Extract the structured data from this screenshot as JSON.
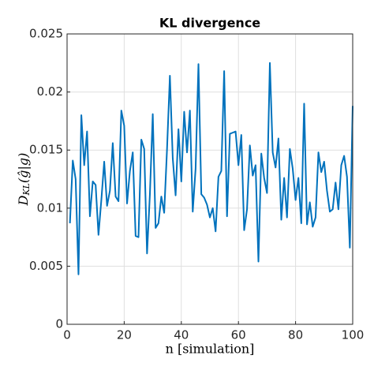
{
  "chart_data": {
    "type": "line",
    "title": "KL divergence",
    "xlabel": "n [simulation]",
    "ylabel": {
      "main": "D",
      "sub": "KL",
      "rest": "(ĝ|g)"
    },
    "x": [
      1,
      2,
      3,
      4,
      5,
      6,
      7,
      8,
      9,
      10,
      11,
      12,
      13,
      14,
      15,
      16,
      17,
      18,
      19,
      20,
      21,
      22,
      23,
      24,
      25,
      26,
      27,
      28,
      29,
      30,
      31,
      32,
      33,
      34,
      35,
      36,
      37,
      38,
      39,
      40,
      41,
      42,
      43,
      44,
      45,
      46,
      47,
      48,
      49,
      50,
      51,
      52,
      53,
      54,
      55,
      56,
      57,
      58,
      59,
      60,
      61,
      62,
      63,
      64,
      65,
      66,
      67,
      68,
      69,
      70,
      71,
      72,
      73,
      74,
      75,
      76,
      77,
      78,
      79,
      80,
      81,
      82,
      83,
      84,
      85,
      86,
      87,
      88,
      89,
      90,
      91,
      92,
      93,
      94,
      95,
      96,
      97,
      98,
      99,
      100
    ],
    "series": [
      {
        "name": "KL",
        "color": "#0072bd",
        "values": [
          0.0087,
          0.0141,
          0.0125,
          0.0043,
          0.018,
          0.0137,
          0.0166,
          0.0093,
          0.0123,
          0.012,
          0.0077,
          0.0107,
          0.014,
          0.0102,
          0.0115,
          0.0156,
          0.011,
          0.0106,
          0.0184,
          0.0171,
          0.0104,
          0.0132,
          0.0148,
          0.0076,
          0.0075,
          0.0159,
          0.0151,
          0.0061,
          0.0112,
          0.0181,
          0.0083,
          0.0087,
          0.011,
          0.0096,
          0.0151,
          0.0214,
          0.0143,
          0.0111,
          0.0168,
          0.0123,
          0.0183,
          0.0148,
          0.0184,
          0.0097,
          0.0134,
          0.0224,
          0.0112,
          0.0109,
          0.0103,
          0.0092,
          0.01,
          0.008,
          0.0127,
          0.0132,
          0.0218,
          0.0093,
          0.0164,
          0.0165,
          0.0166,
          0.0137,
          0.0163,
          0.0081,
          0.0099,
          0.0154,
          0.0128,
          0.0137,
          0.0054,
          0.0147,
          0.0126,
          0.0113,
          0.0225,
          0.0148,
          0.0135,
          0.016,
          0.009,
          0.0126,
          0.0092,
          0.0151,
          0.0134,
          0.0107,
          0.0126,
          0.0087,
          0.019,
          0.0086,
          0.0105,
          0.0084,
          0.0092,
          0.0148,
          0.0131,
          0.014,
          0.0115,
          0.0097,
          0.0099,
          0.0122,
          0.0099,
          0.0137,
          0.0145,
          0.0127,
          0.0066,
          0.0188
        ]
      }
    ],
    "xlim": [
      0,
      100
    ],
    "xticks": [
      0,
      20,
      40,
      60,
      80,
      100
    ],
    "ylim": [
      0,
      0.025
    ],
    "yticks": [
      0,
      0.005,
      0.01,
      0.015,
      0.02,
      0.025
    ],
    "grid": true
  }
}
